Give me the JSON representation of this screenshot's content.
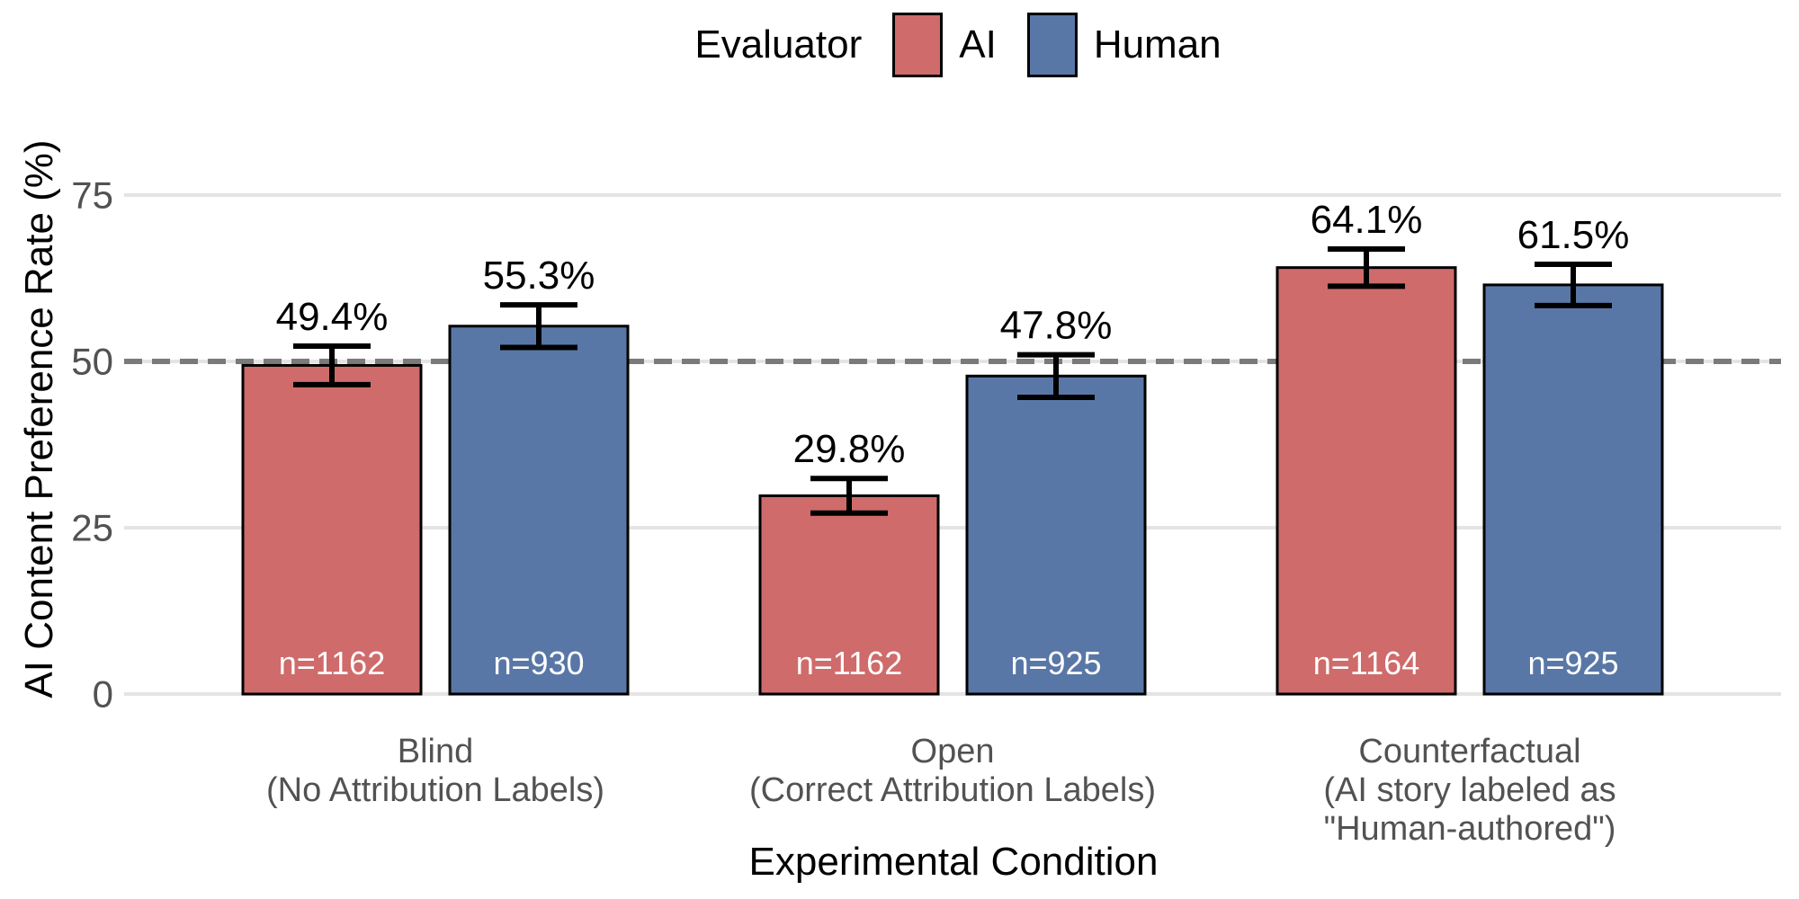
{
  "chart_data": {
    "type": "bar",
    "title": "",
    "legend_title": "Evaluator",
    "legend_position": "top-center",
    "xlabel": "Experimental Condition",
    "ylabel": "AI Content Preference Rate (%)",
    "ylim": [
      0,
      80
    ],
    "grid": "horizontal",
    "y_ticks": [
      "0",
      "25",
      "50",
      "75"
    ],
    "y_tick_values": [
      0,
      25,
      50,
      75
    ],
    "reference_line_y": 50,
    "categories": [
      "Blind (No Attribution Labels)",
      "Open (Correct Attribution Labels)",
      "Counterfactual (AI story labeled as \"Human-authored\")"
    ],
    "category_lines": [
      [
        "Blind",
        "(No Attribution Labels)"
      ],
      [
        "Open",
        "(Correct Attribution Labels)"
      ],
      [
        "Counterfactual",
        "(AI story labeled as",
        "\"Human-authored\")"
      ]
    ],
    "series": [
      {
        "name": "AI",
        "color": "#CF6B6B",
        "values": [
          49.4,
          29.8,
          64.1
        ],
        "value_labels": [
          "49.4%",
          "29.8%",
          "64.1%"
        ],
        "ci_margin": [
          2.9,
          2.6,
          2.8
        ],
        "n": [
          1162,
          1162,
          1164
        ],
        "n_labels": [
          "n=1162",
          "n=1162",
          "n=1164"
        ]
      },
      {
        "name": "Human",
        "color": "#5977A6",
        "values": [
          55.3,
          47.8,
          61.5
        ],
        "value_labels": [
          "55.3%",
          "47.8%",
          "61.5%"
        ],
        "ci_margin": [
          3.2,
          3.2,
          3.1
        ],
        "n": [
          930,
          925,
          925
        ],
        "n_labels": [
          "n=930",
          "n=925",
          "n=925"
        ]
      }
    ],
    "colors": {
      "ai_bar": "#CF6B6B",
      "human_bar": "#5977A6",
      "reference_line": "#7A7A7A",
      "gridline": "#E4E4E4",
      "axis_text": "#525252",
      "title_text": "#000000",
      "bar_border": "#000000",
      "error_bar": "#000000",
      "n_label_text": "#FFFFFF"
    }
  }
}
